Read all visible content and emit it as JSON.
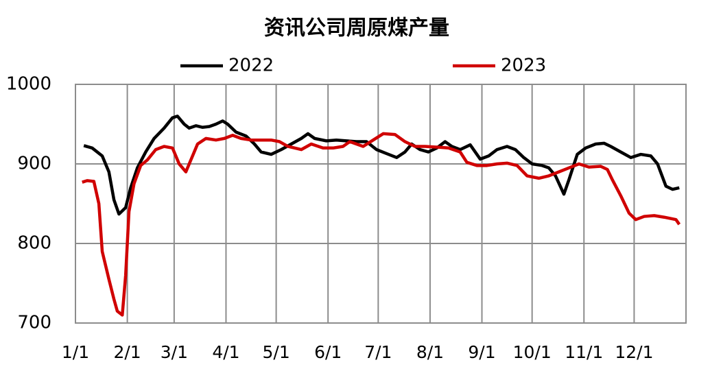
{
  "chart_data": {
    "type": "line",
    "title": "资讯公司周原煤产量",
    "xlim": [
      0,
      365
    ],
    "xticks": [
      {
        "value": 0,
        "label": "1/1"
      },
      {
        "value": 31,
        "label": "2/1"
      },
      {
        "value": 59,
        "label": "3/1"
      },
      {
        "value": 90,
        "label": "4/1"
      },
      {
        "value": 120,
        "label": "5/1"
      },
      {
        "value": 151,
        "label": "6/1"
      },
      {
        "value": 181,
        "label": "7/1"
      },
      {
        "value": 212,
        "label": "8/1"
      },
      {
        "value": 243,
        "label": "9/1"
      },
      {
        "value": 273,
        "label": "10/1"
      },
      {
        "value": 304,
        "label": "11/1"
      },
      {
        "value": 334,
        "label": "12/1"
      }
    ],
    "ylim": [
      700,
      1000
    ],
    "yticks": [
      700,
      800,
      900,
      1000
    ],
    "grid": true,
    "series": [
      {
        "name": "2022",
        "color": "#000000",
        "x": [
          5,
          10,
          16,
          20,
          23,
          26,
          30,
          33,
          37,
          42,
          47,
          53,
          58,
          61,
          65,
          68,
          72,
          76,
          80,
          84,
          88,
          91,
          96,
          102,
          107,
          111,
          117,
          123,
          129,
          135,
          139,
          143,
          150,
          156,
          162,
          168,
          174,
          180,
          186,
          192,
          197,
          201,
          206,
          211,
          216,
          221,
          225,
          230,
          236,
          242,
          247,
          252,
          258,
          263,
          268,
          273,
          279,
          283,
          287,
          292,
          295,
          300,
          305,
          311,
          316,
          320,
          326,
          332,
          338,
          344,
          348,
          353,
          357,
          361
        ],
        "values": [
          923,
          920,
          910,
          890,
          855,
          837,
          845,
          870,
          895,
          915,
          932,
          945,
          958,
          960,
          950,
          945,
          948,
          946,
          947,
          950,
          954,
          950,
          940,
          935,
          925,
          915,
          912,
          918,
          925,
          932,
          938,
          932,
          929,
          930,
          929,
          928,
          928,
          918,
          913,
          908,
          915,
          925,
          918,
          915,
          920,
          928,
          922,
          918,
          924,
          906,
          910,
          918,
          922,
          918,
          908,
          900,
          898,
          895,
          885,
          862,
          880,
          912,
          920,
          925,
          926,
          922,
          915,
          908,
          912,
          910,
          900,
          872,
          868,
          870
        ]
      },
      {
        "name": "2023",
        "color": "#d00000",
        "x": [
          4,
          7,
          11,
          14,
          16,
          20,
          23,
          25,
          28,
          30,
          32,
          35,
          39,
          43,
          48,
          53,
          58,
          62,
          66,
          69,
          73,
          78,
          84,
          89,
          94,
          99,
          105,
          111,
          117,
          122,
          127,
          135,
          141,
          148,
          154,
          160,
          164,
          168,
          172,
          178,
          184,
          191,
          197,
          203,
          209,
          217,
          223,
          230,
          234,
          240,
          246,
          252,
          258,
          264,
          270,
          277,
          283,
          289,
          295,
          301,
          307,
          314,
          318,
          321,
          326,
          331,
          335,
          340,
          346,
          352,
          359,
          361
        ],
        "values": [
          877,
          879,
          878,
          850,
          790,
          755,
          730,
          715,
          710,
          760,
          840,
          875,
          898,
          905,
          918,
          922,
          920,
          900,
          890,
          905,
          925,
          932,
          930,
          932,
          936,
          932,
          930,
          930,
          930,
          928,
          922,
          918,
          925,
          920,
          920,
          922,
          928,
          925,
          922,
          930,
          938,
          937,
          928,
          922,
          922,
          921,
          920,
          915,
          902,
          898,
          898,
          900,
          901,
          898,
          885,
          882,
          885,
          890,
          895,
          900,
          896,
          897,
          893,
          880,
          860,
          838,
          830,
          834,
          835,
          833,
          830,
          824
        ]
      }
    ]
  }
}
